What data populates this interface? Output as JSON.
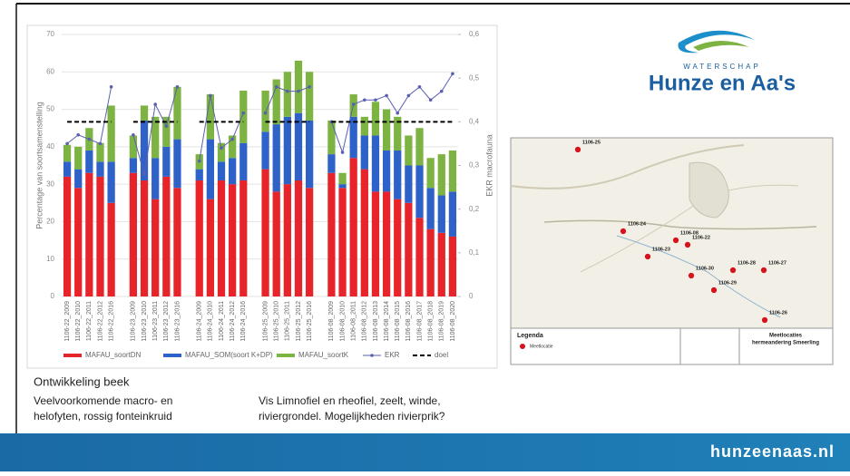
{
  "chart_data": {
    "type": "bar",
    "stacked": true,
    "ylabel": "Percentage van soortsamenstelling",
    "y2label": "EKR macrofauna",
    "categories": [
      "1106-22_2009",
      "1106-22_2010",
      "1106-22_2011",
      "1106-22_2012",
      "1106-22_2016",
      null,
      "1106-23_2009",
      "1106-23_2010",
      "1106-23_2011",
      "1106-23_2012",
      "1106-23_2016",
      null,
      "1106-24_2009",
      "1106-24_2010",
      "1106-24_2011",
      "1106-24_2012",
      "1106-24_2016",
      null,
      "1106-25_2009",
      "1106-25_2010",
      "1106-25_2011",
      "1106-25_2012",
      "1106-25_2016",
      null,
      "1106-08_2009",
      "1106-08_2010",
      "1106-08_2011",
      "1106-08_2012",
      "1106-08_2013",
      "1106-08_2014",
      "1106-08_2015",
      "1106-08_2016",
      "1106-08_2017",
      "1106-08_2018",
      "1106-08_2019",
      "1106-08_2020"
    ],
    "series": [
      {
        "name": "MAFAU_soortDN",
        "color": "#e8242b",
        "values": [
          32,
          29,
          33,
          32,
          25,
          null,
          33,
          31,
          26,
          32,
          29,
          null,
          31,
          26,
          31,
          30,
          31,
          null,
          34,
          28,
          30,
          31,
          29,
          null,
          33,
          29,
          37,
          34,
          28,
          28,
          26,
          25,
          21,
          18,
          17,
          16
        ]
      },
      {
        "name": "MAFAU_SOM(soort K+DP)",
        "color": "#2f62c8",
        "values": [
          4,
          5,
          6,
          4,
          11,
          null,
          4,
          16,
          11,
          8,
          13,
          null,
          3,
          16,
          5,
          7,
          10,
          null,
          10,
          18,
          18,
          18,
          18,
          null,
          5,
          1,
          11,
          9,
          15,
          11,
          13,
          10,
          14,
          11,
          10,
          12
        ]
      },
      {
        "name": "MAFAU_soortK",
        "color": "#7cb342",
        "values": [
          4.5,
          6,
          6,
          5,
          15,
          null,
          6,
          4,
          11,
          8,
          14,
          null,
          4,
          12,
          5,
          6,
          14,
          null,
          11,
          12,
          12,
          14,
          13,
          null,
          9,
          3,
          6,
          5,
          9,
          11,
          9,
          8,
          10,
          8,
          11,
          11
        ]
      },
      {
        "name": "EKR",
        "color": "#5a5fb0",
        "type": "line",
        "markers": true,
        "axis": "y2",
        "values": [
          0.35,
          0.37,
          0.36,
          0.35,
          0.48,
          null,
          0.37,
          0.28,
          0.44,
          0.39,
          0.48,
          null,
          0.31,
          0.46,
          0.34,
          0.36,
          0.42,
          null,
          0.42,
          0.48,
          0.47,
          0.47,
          0.48,
          null,
          0.4,
          0.33,
          0.44,
          0.45,
          0.45,
          0.46,
          0.42,
          0.46,
          0.48,
          0.45,
          0.47,
          0.51
        ]
      },
      {
        "name": "doel",
        "color": "#000000",
        "type": "line",
        "dashed": true,
        "axis": "y2",
        "values": [
          0.4,
          0.4,
          0.4,
          0.4,
          0.4,
          null,
          0.4,
          0.4,
          0.4,
          0.4,
          0.4,
          null,
          0.4,
          0.4,
          0.4,
          0.4,
          0.4,
          null,
          0.4,
          0.4,
          0.4,
          0.4,
          0.4,
          null,
          0.4,
          0.4,
          0.4,
          0.4,
          0.4,
          0.4,
          0.4,
          0.4,
          0.4,
          0.4,
          0.4,
          0.4
        ]
      }
    ],
    "ylim": [
      0,
      70
    ],
    "yticks": [
      0,
      10,
      20,
      30,
      40,
      50,
      60,
      70
    ],
    "y2lim": [
      0,
      0.6
    ],
    "y2ticks": [
      0,
      {
        "value": 0.1,
        "label": "0,1"
      },
      {
        "value": 0.2,
        "label": "0,2"
      },
      {
        "value": 0.3,
        "label": "0,3"
      },
      {
        "value": 0.4,
        "label": "0,4"
      },
      {
        "value": 0.5,
        "label": "0,5"
      },
      {
        "value": 0.6,
        "label": "0,6"
      }
    ],
    "grid": true,
    "legend": "bottom"
  },
  "logo": {
    "top": "WATERSCHAP",
    "name": "Hunze en Aa's"
  },
  "map": {
    "points": [
      "1106-25",
      "1106-24",
      "1106-08",
      "1106-22",
      "1106-23",
      "1106-30",
      "1106-28",
      "1106-27",
      "1106-29",
      "1106-26"
    ],
    "legend_title": "Legenda",
    "legend_item": "Meetlocatie",
    "title": "Meetlocaties",
    "subtitle": "hermeandering Smeerling"
  },
  "notes": {
    "heading": "Ontwikkeling beek",
    "left": [
      "Veelvoorkomende macro- en",
      "helofyten, rossig fonteinkruid"
    ],
    "right": [
      "Vis Limnofiel en rheofiel, zeelt, winde,",
      "riviergrondel. Mogelijkheden rivierprik?"
    ]
  },
  "footer": "hunzeenaas.nl"
}
